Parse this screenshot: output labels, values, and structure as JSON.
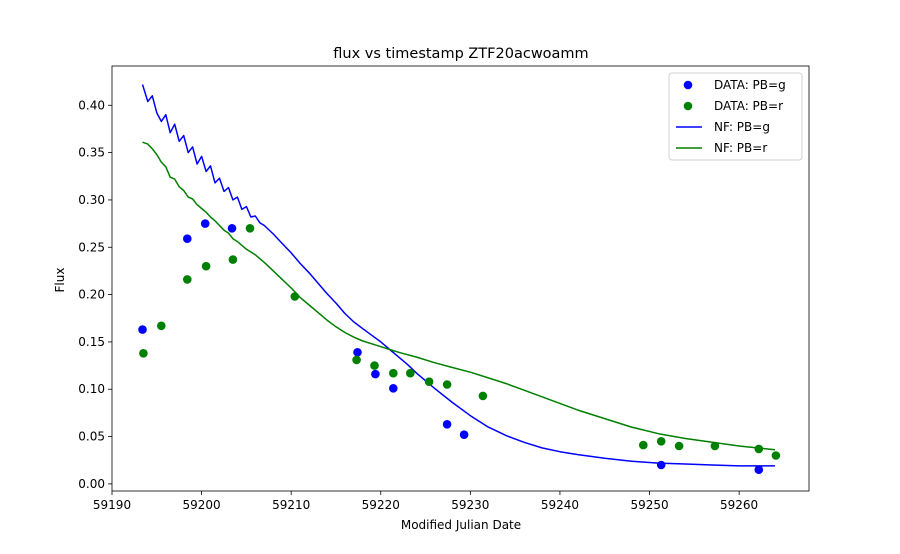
{
  "chart_data": {
    "type": "scatter",
    "title": "flux vs timestamp ZTF20acwoamm",
    "xlabel": "Modified Julian Date",
    "ylabel": "Flux",
    "xlim": [
      59190,
      59267.8
    ],
    "ylim": [
      -0.0075,
      0.4415
    ],
    "xticks": [
      59190,
      59200,
      59210,
      59220,
      59230,
      59240,
      59250,
      59260
    ],
    "xtick_labels": [
      "59190",
      "59200",
      "59210",
      "59220",
      "59230",
      "59240",
      "59250",
      "59260"
    ],
    "yticks": [
      0.0,
      0.05,
      0.1,
      0.15,
      0.2,
      0.25,
      0.3,
      0.35,
      0.4
    ],
    "ytick_labels": [
      "0.00",
      "0.05",
      "0.10",
      "0.15",
      "0.20",
      "0.25",
      "0.30",
      "0.35",
      "0.40"
    ],
    "grid": false,
    "legend_position": "top-right",
    "legend": [
      "DATA: PB=g",
      "DATA: PB=r",
      "NF: PB=g",
      "NF: PB=r"
    ],
    "colors": {
      "g": "#0000ff",
      "r": "#008000"
    },
    "scatter_series": [
      {
        "name": "DATA: PB=g",
        "band": "g",
        "x": [
          59193.4,
          59198.4,
          59200.4,
          59203.4,
          59217.4,
          59219.4,
          59221.4,
          59227.4,
          59229.3,
          59251.3,
          59262.2
        ],
        "y": [
          0.163,
          0.259,
          0.275,
          0.27,
          0.139,
          0.116,
          0.101,
          0.063,
          0.052,
          0.02,
          0.015
        ]
      },
      {
        "name": "DATA: PB=r",
        "band": "r",
        "x": [
          59193.5,
          59195.5,
          59198.4,
          59200.5,
          59203.5,
          59205.4,
          59210.4,
          59217.3,
          59219.3,
          59221.4,
          59223.3,
          59225.4,
          59227.4,
          59231.4,
          59249.3,
          59251.3,
          59253.3,
          59257.3,
          59262.2,
          59264.1
        ],
        "y": [
          0.138,
          0.167,
          0.216,
          0.23,
          0.237,
          0.27,
          0.198,
          0.131,
          0.125,
          0.117,
          0.117,
          0.108,
          0.105,
          0.093,
          0.041,
          0.045,
          0.04,
          0.04,
          0.037,
          0.03
        ]
      }
    ],
    "line_series": [
      {
        "name": "NF: PB=g",
        "band": "g",
        "x": [
          59193.4,
          59194.0,
          59194.5,
          59195.0,
          59195.5,
          59196.0,
          59196.5,
          59197.0,
          59197.5,
          59198.0,
          59198.5,
          59199.0,
          59199.5,
          59200.0,
          59200.5,
          59201.0,
          59201.5,
          59202.0,
          59202.5,
          59203.0,
          59203.5,
          59204.0,
          59204.5,
          59205.0,
          59205.5,
          59206.0,
          59206.5,
          59207.0,
          59208.0,
          59209.0,
          59210.0,
          59211.0,
          59212.0,
          59213.0,
          59214.0,
          59215.0,
          59216.0,
          59217.0,
          59218.0,
          59219.0,
          59220.0,
          59221.0,
          59222.0,
          59223.0,
          59224.0,
          59226.0,
          59228.0,
          59230.0,
          59232.0,
          59234.0,
          59236.0,
          59238.0,
          59240.0,
          59242.0,
          59245.0,
          59248.0,
          59251.0,
          59254.0,
          59257.0,
          59260.0,
          59262.0,
          59264.0
        ],
        "y": [
          0.422,
          0.404,
          0.41,
          0.392,
          0.383,
          0.39,
          0.371,
          0.38,
          0.362,
          0.368,
          0.35,
          0.356,
          0.338,
          0.346,
          0.33,
          0.336,
          0.318,
          0.323,
          0.309,
          0.313,
          0.3,
          0.303,
          0.29,
          0.293,
          0.282,
          0.283,
          0.276,
          0.273,
          0.264,
          0.254,
          0.244,
          0.233,
          0.223,
          0.212,
          0.201,
          0.191,
          0.18,
          0.171,
          0.164,
          0.157,
          0.15,
          0.142,
          0.134,
          0.126,
          0.117,
          0.101,
          0.086,
          0.072,
          0.06,
          0.051,
          0.044,
          0.038,
          0.034,
          0.031,
          0.027,
          0.024,
          0.022,
          0.021,
          0.02,
          0.019,
          0.019,
          0.019
        ]
      },
      {
        "name": "NF: PB=r",
        "band": "r",
        "x": [
          59193.4,
          59194.0,
          59194.5,
          59195.0,
          59195.5,
          59196.0,
          59196.5,
          59197.0,
          59197.5,
          59198.0,
          59198.5,
          59199.0,
          59199.5,
          59200.0,
          59200.5,
          59201.0,
          59201.5,
          59202.0,
          59202.5,
          59203.0,
          59203.5,
          59204.0,
          59204.5,
          59205.0,
          59205.5,
          59206.0,
          59207.0,
          59208.0,
          59209.0,
          59210.0,
          59211.0,
          59212.0,
          59213.0,
          59214.0,
          59215.0,
          59216.0,
          59217.0,
          59218.0,
          59219.0,
          59220.0,
          59221.0,
          59222.0,
          59224.0,
          59226.0,
          59228.0,
          59230.0,
          59232.0,
          59234.0,
          59236.0,
          59238.0,
          59240.0,
          59242.0,
          59245.0,
          59248.0,
          59251.0,
          59254.0,
          59257.0,
          59260.0,
          59262.0,
          59264.0
        ],
        "y": [
          0.361,
          0.359,
          0.354,
          0.348,
          0.34,
          0.335,
          0.324,
          0.322,
          0.314,
          0.31,
          0.303,
          0.301,
          0.295,
          0.291,
          0.287,
          0.282,
          0.278,
          0.273,
          0.268,
          0.265,
          0.259,
          0.256,
          0.252,
          0.248,
          0.245,
          0.242,
          0.234,
          0.225,
          0.216,
          0.207,
          0.197,
          0.189,
          0.181,
          0.173,
          0.166,
          0.16,
          0.155,
          0.151,
          0.148,
          0.145,
          0.142,
          0.139,
          0.134,
          0.128,
          0.123,
          0.118,
          0.112,
          0.106,
          0.099,
          0.092,
          0.085,
          0.078,
          0.069,
          0.06,
          0.053,
          0.048,
          0.044,
          0.04,
          0.038,
          0.036
        ]
      }
    ]
  }
}
